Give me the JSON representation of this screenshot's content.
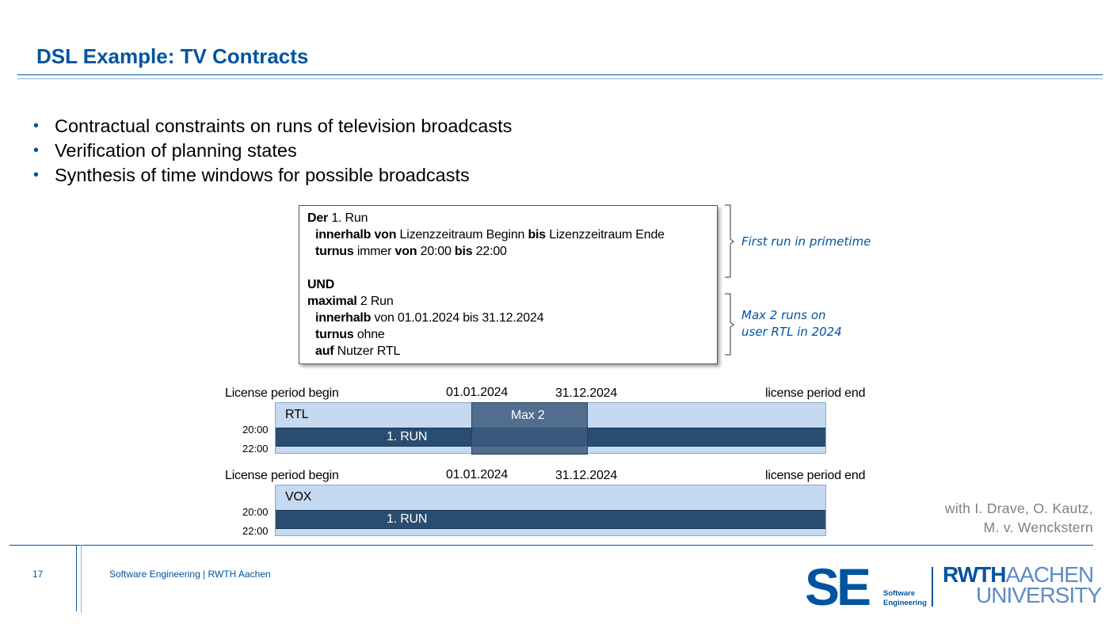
{
  "slide": {
    "title": "DSL Example: TV Contracts",
    "bullets": [
      "Contractual constraints on runs of television broadcasts",
      "Verification of planning states",
      "Synthesis of time windows for possible broadcasts"
    ],
    "code": {
      "l1_kw": "Der",
      "l1_rest": " 1. Run",
      "l2_kw1": "innerhalb von",
      "l2_mid": " Lizenzzeitraum Beginn ",
      "l2_kw2": "bis",
      "l2_rest": " Lizenzzeitraum Ende",
      "l3_kw1": "turnus",
      "l3_mid": " immer ",
      "l3_kw2": "von",
      "l3_mid2": " 20:00 ",
      "l3_kw3": "bis",
      "l3_rest": " 22:00",
      "l5_kw": "UND",
      "l6_kw": "maximal",
      "l6_rest": " 2 Run",
      "l7_kw": "innerhalb",
      "l7_rest": " von 01.01.2024 bis 31.12.2024",
      "l8_kw": "turnus",
      "l8_rest": " ohne",
      "l9_kw": "auf",
      "l9_rest": " Nutzer RTL"
    },
    "notes": {
      "first_run": "First run in primetime",
      "max_runs_line1": "Max 2 runs on",
      "max_runs_line2": "user RTL in 2024"
    },
    "timeline1": {
      "label_begin": "License period begin",
      "date_start": "01.01.2024",
      "date_end": "31.12.2024",
      "label_end": "license period end",
      "channel": "RTL",
      "max_label": "Max 2",
      "time_start": "20:00",
      "time_end": "22:00",
      "run_label": "1. RUN"
    },
    "timeline2": {
      "label_begin": "License period begin",
      "date_start": "01.01.2024",
      "date_end": "31.12.2024",
      "label_end": "license period end",
      "channel": "VOX",
      "time_start": "20:00",
      "time_end": "22:00",
      "run_label": "1. RUN"
    },
    "credit_line1": "with I. Drave, O. Kautz,",
    "credit_line2": "M. v. Wenckstern"
  },
  "footer": {
    "page_number": "17",
    "text": "Software Engineering  |  RWTH Aachen",
    "logo_se": "SE",
    "logo_se_sub1": "Software",
    "logo_se_sub2": "Engineering",
    "logo_rwth_bold": "RWTH",
    "logo_rwth_light": "AACHEN",
    "logo_univ": "UNIVERSITY"
  },
  "colors": {
    "accent": "#00549f",
    "bar_light": "#c5d9f1",
    "bar_dark": "#294d71",
    "credit_gray": "#7f7f7f"
  }
}
